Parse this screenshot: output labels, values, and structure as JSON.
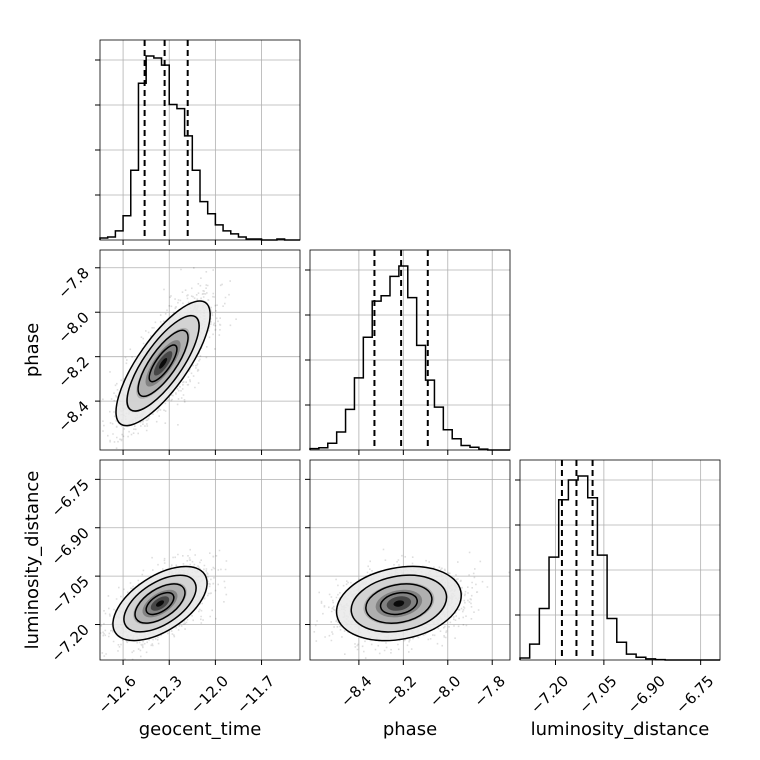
{
  "chart_data": {
    "type": "corner",
    "grid": true,
    "parameters": [
      "geocent_time",
      "phase",
      "luminosity_distance"
    ],
    "axes": {
      "geocent_time": {
        "range": [
          -12.75,
          -11.45
        ],
        "ticks": [
          -12.6,
          -12.3,
          -12.0,
          -11.7
        ],
        "tick_labels": [
          "−12.6",
          "−12.3",
          "−12.0",
          "−11.7"
        ]
      },
      "phase": {
        "range": [
          -8.62,
          -7.72
        ],
        "ticks": [
          -8.4,
          -8.2,
          -8.0,
          -7.8
        ],
        "tick_labels": [
          "−8.4",
          "−8.2",
          "−8.0",
          "−7.8"
        ]
      },
      "luminosity_distance": {
        "range": [
          -7.31,
          -6.69
        ],
        "ticks": [
          -7.2,
          -7.05,
          -6.9,
          -6.75
        ],
        "tick_labels": [
          "−7.20",
          "−7.05",
          "−6.90",
          "−6.75"
        ]
      }
    },
    "histograms": {
      "geocent_time": {
        "quantiles": [
          -12.46,
          -12.33,
          -12.18
        ],
        "bins": [
          -12.75,
          -12.7,
          -12.65,
          -12.6,
          -12.55,
          -12.5,
          -12.45,
          -12.4,
          -12.35,
          -12.3,
          -12.25,
          -12.2,
          -12.15,
          -12.1,
          -12.05,
          -12.0,
          -11.95,
          -11.9,
          -11.85,
          -11.8,
          -11.75,
          -11.7,
          -11.65,
          -11.6,
          -11.55
        ],
        "counts": [
          2,
          3,
          9,
          24,
          69,
          155,
          182,
          180,
          173,
          134,
          130,
          103,
          69,
          38,
          26,
          15,
          9,
          6,
          3,
          1,
          1,
          0,
          0,
          1,
          0
        ]
      },
      "phase": {
        "quantiles": [
          -8.33,
          -8.21,
          -8.09
        ],
        "bins": [
          -8.62,
          -8.58,
          -8.54,
          -8.5,
          -8.46,
          -8.42,
          -8.38,
          -8.34,
          -8.3,
          -8.26,
          -8.22,
          -8.18,
          -8.14,
          -8.1,
          -8.06,
          -8.02,
          -7.98,
          -7.94,
          -7.9,
          -7.86,
          -7.82
        ],
        "counts": [
          3,
          5,
          15,
          40,
          90,
          160,
          250,
          330,
          342,
          385,
          408,
          338,
          232,
          155,
          95,
          45,
          25,
          10,
          6,
          2,
          0
        ]
      },
      "luminosity_distance": {
        "quantiles": [
          -7.18,
          -7.135,
          -7.085
        ],
        "bins": [
          -7.31,
          -7.28,
          -7.25,
          -7.22,
          -7.19,
          -7.16,
          -7.13,
          -7.1,
          -7.07,
          -7.04,
          -7.01,
          -6.98,
          -6.95,
          -6.92,
          -6.89,
          -6.86,
          -6.83,
          -6.8,
          -6.77,
          -6.74,
          -6.71
        ],
        "counts": [
          5,
          40,
          130,
          260,
          405,
          455,
          465,
          410,
          265,
          105,
          45,
          15,
          7,
          3,
          1,
          0,
          0,
          0,
          0,
          0,
          0
        ]
      }
    },
    "joint": [
      {
        "x": "geocent_time",
        "y": "phase",
        "mean": [
          -12.34,
          -8.23
        ],
        "sd": [
          0.12,
          0.11
        ],
        "corr": 0.78
      },
      {
        "x": "geocent_time",
        "y": "luminosity_distance",
        "mean": [
          -12.36,
          -7.135
        ],
        "sd": [
          0.12,
          0.045
        ],
        "corr": 0.55
      },
      {
        "x": "phase",
        "y": "luminosity_distance",
        "mean": [
          -8.22,
          -7.135
        ],
        "sd": [
          0.11,
          0.045
        ],
        "corr": 0.22
      }
    ]
  }
}
